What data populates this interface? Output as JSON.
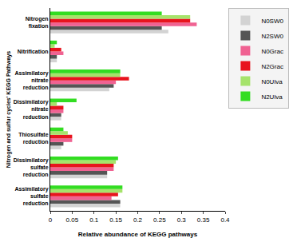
{
  "chart_data": {
    "type": "bar",
    "orientation": "horizontal",
    "x_label": "Relative abundance of KEGG pathways",
    "y_label": "Nitrogen and sulfur cycles' KEGG Pathways",
    "categories": [
      "Nitrogen fixation",
      "Nitrification",
      "Assimilatory nitrate reduction",
      "Dissimilatory nitrate reduction",
      "Thiosulfate reduction",
      "Dissimilatory sulfate reduction",
      "Assimilatory sulfate reduction"
    ],
    "series": [
      {
        "name": "N0SW0",
        "color": "#d3d3d3",
        "values": [
          0.27,
          0.015,
          0.135,
          0.025,
          0.025,
          0.13,
          0.16
        ]
      },
      {
        "name": "N2SW0",
        "color": "#555555",
        "values": [
          0.255,
          0.015,
          0.145,
          0.025,
          0.03,
          0.13,
          0.16
        ]
      },
      {
        "name": "N0Grac",
        "color": "#f06292",
        "values": [
          0.335,
          0.03,
          0.15,
          0.03,
          0.05,
          0.145,
          0.14
        ]
      },
      {
        "name": "N2Grac",
        "color": "#e8141e",
        "values": [
          0.32,
          0.025,
          0.18,
          0.03,
          0.05,
          0.145,
          0.155
        ]
      },
      {
        "name": "N0Ulva",
        "color": "#a6e36b",
        "values": [
          0.32,
          0.01,
          0.16,
          0.015,
          0.04,
          0.15,
          0.165
        ]
      },
      {
        "name": "N2Ulva",
        "color": "#33dd22",
        "values": [
          0.255,
          0.015,
          0.16,
          0.06,
          0.03,
          0.155,
          0.165
        ]
      }
    ],
    "xlim": [
      0,
      0.4
    ],
    "xticks": [
      0,
      0.05,
      0.1,
      0.15,
      0.2,
      0.25,
      0.3,
      0.35,
      0.4
    ],
    "grid": false,
    "legend": "top right"
  }
}
